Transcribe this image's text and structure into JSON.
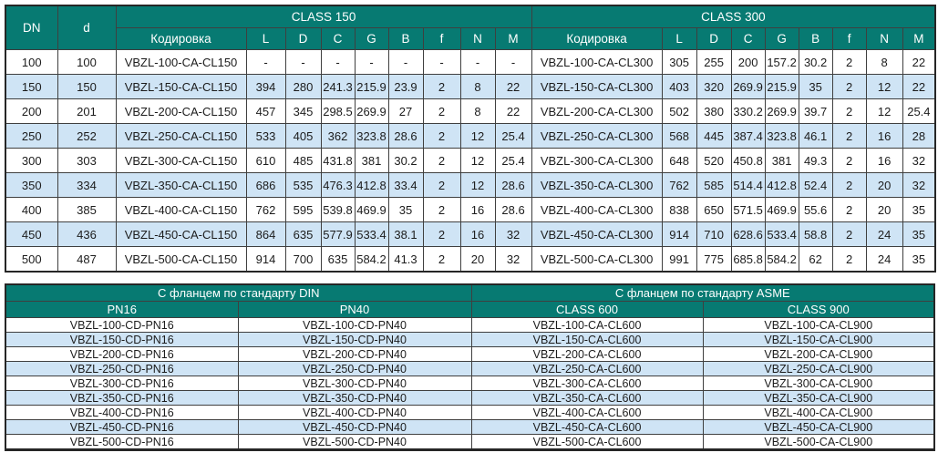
{
  "colors": {
    "header_bg": "#077a72",
    "header_text": "#ffffff",
    "row_alt_bg": "#cfe4f5",
    "grid_border": "#3f3f3f",
    "body_text": "#1c1c1c"
  },
  "dimensions_table": {
    "dn_header": "DN",
    "d_header": "d",
    "groups": [
      {
        "label": "CLASS 150",
        "coding_header": "Кодировка",
        "dim_headers": [
          "L",
          "D",
          "C",
          "G",
          "B",
          "f",
          "N",
          "M"
        ]
      },
      {
        "label": "CLASS 300",
        "coding_header": "Кодировка",
        "dim_headers": [
          "L",
          "D",
          "C",
          "G",
          "B",
          "f",
          "N",
          "M"
        ]
      }
    ],
    "rows": [
      {
        "dn": "100",
        "d": "100",
        "cl150": {
          "code": "VBZL-100-CA-CL150",
          "values": [
            "-",
            "-",
            "-",
            "-",
            "-",
            "-",
            "-",
            "-"
          ]
        },
        "cl300": {
          "code": "VBZL-100-CA-CL300",
          "values": [
            "305",
            "255",
            "200",
            "157.2",
            "30.2",
            "2",
            "8",
            "22"
          ]
        }
      },
      {
        "dn": "150",
        "d": "150",
        "cl150": {
          "code": "VBZL-150-CA-CL150",
          "values": [
            "394",
            "280",
            "241.3",
            "215.9",
            "23.9",
            "2",
            "8",
            "22"
          ]
        },
        "cl300": {
          "code": "VBZL-150-CA-CL300",
          "values": [
            "403",
            "320",
            "269.9",
            "215.9",
            "35",
            "2",
            "12",
            "22"
          ]
        }
      },
      {
        "dn": "200",
        "d": "201",
        "cl150": {
          "code": "VBZL-200-CA-CL150",
          "values": [
            "457",
            "345",
            "298.5",
            "269.9",
            "27",
            "2",
            "8",
            "22"
          ]
        },
        "cl300": {
          "code": "VBZL-200-CA-CL300",
          "values": [
            "502",
            "380",
            "330.2",
            "269.9",
            "39.7",
            "2",
            "12",
            "25.4"
          ]
        }
      },
      {
        "dn": "250",
        "d": "252",
        "cl150": {
          "code": "VBZL-250-CA-CL150",
          "values": [
            "533",
            "405",
            "362",
            "323.8",
            "28.6",
            "2",
            "12",
            "25.4"
          ]
        },
        "cl300": {
          "code": "VBZL-250-CA-CL300",
          "values": [
            "568",
            "445",
            "387.4",
            "323.8",
            "46.1",
            "2",
            "16",
            "28"
          ]
        }
      },
      {
        "dn": "300",
        "d": "303",
        "cl150": {
          "code": "VBZL-300-CA-CL150",
          "values": [
            "610",
            "485",
            "431.8",
            "381",
            "30.2",
            "2",
            "12",
            "25.4"
          ]
        },
        "cl300": {
          "code": "VBZL-300-CA-CL300",
          "values": [
            "648",
            "520",
            "450.8",
            "381",
            "49.3",
            "2",
            "16",
            "32"
          ]
        }
      },
      {
        "dn": "350",
        "d": "334",
        "cl150": {
          "code": "VBZL-350-CA-CL150",
          "values": [
            "686",
            "535",
            "476.3",
            "412.8",
            "33.4",
            "2",
            "12",
            "28.6"
          ]
        },
        "cl300": {
          "code": "VBZL-350-CA-CL300",
          "values": [
            "762",
            "585",
            "514.4",
            "412.8",
            "52.4",
            "2",
            "20",
            "32"
          ]
        }
      },
      {
        "dn": "400",
        "d": "385",
        "cl150": {
          "code": "VBZL-400-CA-CL150",
          "values": [
            "762",
            "595",
            "539.8",
            "469.9",
            "35",
            "2",
            "16",
            "28.6"
          ]
        },
        "cl300": {
          "code": "VBZL-400-CA-CL300",
          "values": [
            "838",
            "650",
            "571.5",
            "469.9",
            "55.6",
            "2",
            "20",
            "35"
          ]
        }
      },
      {
        "dn": "450",
        "d": "436",
        "cl150": {
          "code": "VBZL-450-CA-CL150",
          "values": [
            "864",
            "635",
            "577.9",
            "533.4",
            "38.1",
            "2",
            "16",
            "32"
          ]
        },
        "cl300": {
          "code": "VBZL-450-CA-CL300",
          "values": [
            "914",
            "710",
            "628.6",
            "533.4",
            "58.8",
            "2",
            "24",
            "35"
          ]
        }
      },
      {
        "dn": "500",
        "d": "487",
        "cl150": {
          "code": "VBZL-500-CA-CL150",
          "values": [
            "914",
            "700",
            "635",
            "584.2",
            "41.3",
            "2",
            "20",
            "32"
          ]
        },
        "cl300": {
          "code": "VBZL-500-CA-CL300",
          "values": [
            "991",
            "775",
            "685.8",
            "584.2",
            "62",
            "2",
            "24",
            "35"
          ]
        }
      }
    ]
  },
  "flange_table": {
    "groups": [
      {
        "label": "С фланцем по стандарту DIN",
        "columns": [
          "PN16",
          "PN40"
        ]
      },
      {
        "label": "С фланцем по стандарту ASME",
        "columns": [
          "CLASS 600",
          "CLASS 900"
        ]
      }
    ],
    "rows": [
      [
        "VBZL-100-CD-PN16",
        "VBZL-100-CD-PN40",
        "VBZL-100-CA-CL600",
        "VBZL-100-CA-CL900"
      ],
      [
        "VBZL-150-CD-PN16",
        "VBZL-150-CD-PN40",
        "VBZL-150-CA-CL600",
        "VBZL-150-CA-CL900"
      ],
      [
        "VBZL-200-CD-PN16",
        "VBZL-200-CD-PN40",
        "VBZL-200-CA-CL600",
        "VBZL-200-CA-CL900"
      ],
      [
        "VBZL-250-CD-PN16",
        "VBZL-250-CD-PN40",
        "VBZL-250-CA-CL600",
        "VBZL-250-CA-CL900"
      ],
      [
        "VBZL-300-CD-PN16",
        "VBZL-300-CD-PN40",
        "VBZL-300-CA-CL600",
        "VBZL-300-CA-CL900"
      ],
      [
        "VBZL-350-CD-PN16",
        "VBZL-350-CD-PN40",
        "VBZL-350-CA-CL600",
        "VBZL-350-CA-CL900"
      ],
      [
        "VBZL-400-CD-PN16",
        "VBZL-400-CD-PN40",
        "VBZL-400-CA-CL600",
        "VBZL-400-CA-CL900"
      ],
      [
        "VBZL-450-CD-PN16",
        "VBZL-450-CD-PN40",
        "VBZL-450-CA-CL600",
        "VBZL-450-CA-CL900"
      ],
      [
        "VBZL-500-CD-PN16",
        "VBZL-500-CD-PN40",
        "VBZL-500-CA-CL600",
        "VBZL-500-CA-CL900"
      ]
    ]
  }
}
